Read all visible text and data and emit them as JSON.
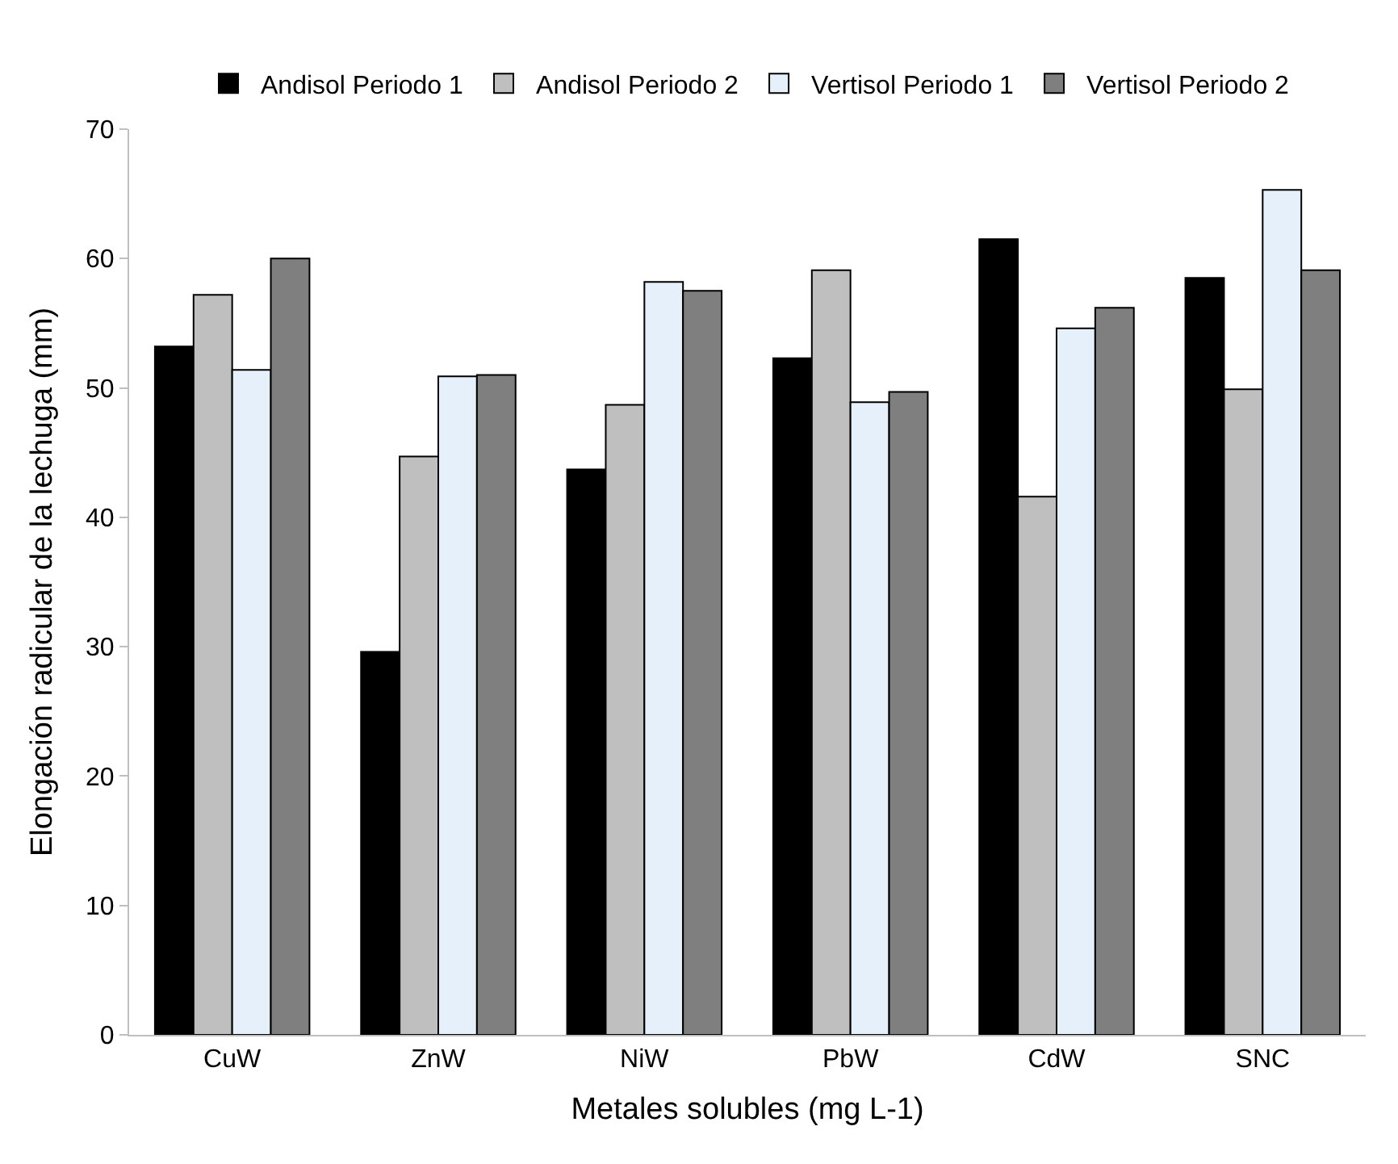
{
  "chart_data": {
    "type": "bar",
    "xlabel": "Metales solubles (mg L-1)",
    "ylabel": "Elongación radicular de la lechuga (mm)",
    "categories": [
      "CuW",
      "ZnW",
      "NiW",
      "PbW",
      "CdW",
      "SNC"
    ],
    "series": [
      {
        "name": "Andisol Periodo 1",
        "color": "#000000",
        "values": [
          53.2,
          29.6,
          43.7,
          52.3,
          61.5,
          58.5
        ]
      },
      {
        "name": "Andisol Periodo 2",
        "color": "#bfbfbf",
        "values": [
          57.2,
          44.7,
          48.7,
          59.1,
          41.6,
          49.9
        ]
      },
      {
        "name": "Vertisol Periodo 1",
        "color": "#e6f0fa",
        "values": [
          51.4,
          50.9,
          58.2,
          48.9,
          54.6,
          65.3
        ]
      },
      {
        "name": "Vertisol Periodo 2",
        "color": "#7f7f7f",
        "values": [
          60.0,
          51.0,
          57.5,
          49.7,
          56.2,
          59.1
        ]
      }
    ],
    "ylim": [
      0,
      70
    ],
    "yticks": [
      0,
      10,
      20,
      30,
      40,
      50,
      60,
      70
    ],
    "legend": "top"
  }
}
